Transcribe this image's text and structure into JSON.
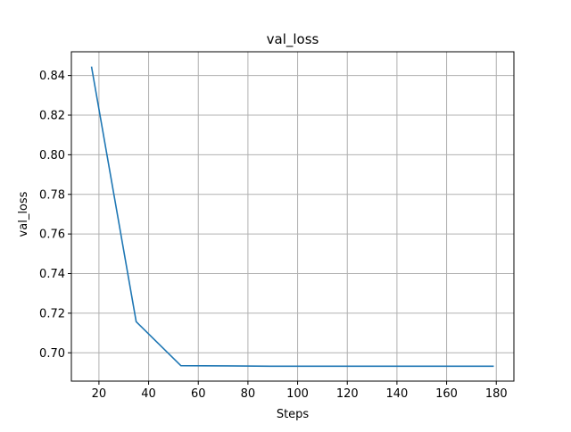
{
  "chart_data": {
    "type": "line",
    "title": "val_loss",
    "xlabel": "Steps",
    "ylabel": "val_loss",
    "xlim": [
      8.9,
      187.1
    ],
    "ylim": [
      0.6857,
      0.852
    ],
    "grid": true,
    "xticks": [
      20,
      40,
      60,
      80,
      100,
      120,
      140,
      160,
      180
    ],
    "xtick_labels": [
      "20",
      "40",
      "60",
      "80",
      "100",
      "120",
      "140",
      "160",
      "180"
    ],
    "yticks": [
      0.7,
      0.72,
      0.74,
      0.76,
      0.78,
      0.8,
      0.82,
      0.84
    ],
    "ytick_labels": [
      "0.70",
      "0.72",
      "0.74",
      "0.76",
      "0.78",
      "0.80",
      "0.82",
      "0.84"
    ],
    "series": [
      {
        "color": "#1f77b4",
        "x": [
          17,
          35,
          53,
          71,
          89,
          107,
          125,
          143,
          161,
          179
        ],
        "y": [
          0.8445,
          0.7157,
          0.6935,
          0.6934,
          0.6932,
          0.6932,
          0.6932,
          0.6932,
          0.6932,
          0.6932
        ]
      }
    ]
  }
}
